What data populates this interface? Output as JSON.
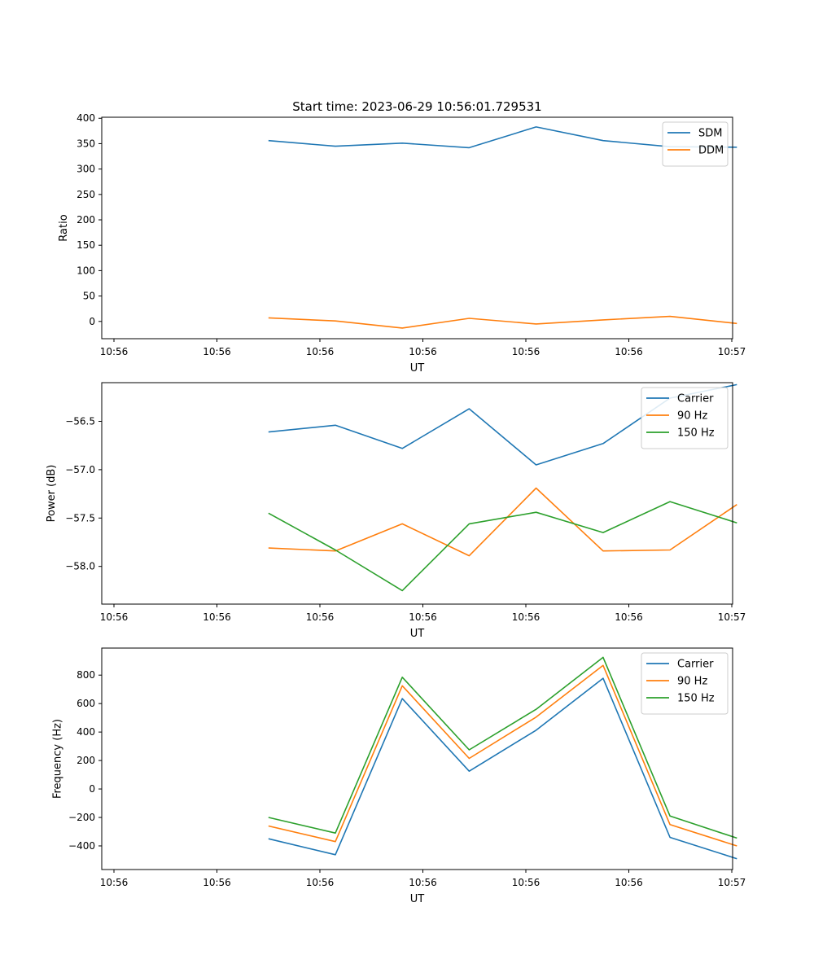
{
  "figure": {
    "title": "Start time: 2023-06-29 10:56:01.729531"
  },
  "chart_data": [
    {
      "type": "line",
      "xlabel": "UT",
      "ylabel": "Ratio",
      "x_tick_labels": [
        "10:56",
        "10:56",
        "10:56",
        "10:56",
        "10:56",
        "10:56",
        "10:57"
      ],
      "x_points": [
        1.5,
        2.15,
        2.8,
        3.45,
        4.1,
        4.75,
        5.4,
        6.05
      ],
      "xlim": [
        0,
        6
      ],
      "ylim": [
        -34,
        402
      ],
      "y_ticks": [
        0,
        50,
        100,
        150,
        200,
        250,
        300,
        350,
        400
      ],
      "y_tick_labels": [
        "0",
        "50",
        "100",
        "150",
        "200",
        "250",
        "300",
        "350",
        "400"
      ],
      "legend_position": "top-right",
      "grid": false,
      "series": [
        {
          "name": "SDM",
          "color": "#1f77b4",
          "values": [
            356,
            345,
            351,
            342,
            383,
            356,
            344,
            343
          ]
        },
        {
          "name": "DDM",
          "color": "#ff7f0e",
          "values": [
            7,
            1,
            -13,
            6,
            -5,
            3,
            10,
            -4
          ]
        }
      ]
    },
    {
      "type": "line",
      "xlabel": "UT",
      "ylabel": "Power (dB)",
      "x_tick_labels": [
        "10:56",
        "10:56",
        "10:56",
        "10:56",
        "10:56",
        "10:56",
        "10:57"
      ],
      "x_points": [
        1.5,
        2.15,
        2.8,
        3.45,
        4.1,
        4.75,
        5.4,
        6.05
      ],
      "xlim": [
        0,
        6
      ],
      "ylim": [
        -58.39,
        -56.1
      ],
      "y_ticks": [
        -58.0,
        -57.5,
        -57.0,
        -56.5
      ],
      "y_tick_labels": [
        "−58.0",
        "−57.5",
        "−57.0",
        "−56.5"
      ],
      "legend_position": "top-right",
      "grid": false,
      "series": [
        {
          "name": "Carrier",
          "color": "#1f77b4",
          "values": [
            -56.61,
            -56.54,
            -56.78,
            -56.37,
            -56.95,
            -56.73,
            -56.26,
            -56.12
          ]
        },
        {
          "name": "90 Hz",
          "color": "#ff7f0e",
          "values": [
            -57.81,
            -57.84,
            -57.56,
            -57.89,
            -57.19,
            -57.84,
            -57.83,
            -57.36
          ]
        },
        {
          "name": "150 Hz",
          "color": "#2ca02c",
          "values": [
            -57.45,
            -57.83,
            -58.25,
            -57.56,
            -57.44,
            -57.65,
            -57.33,
            -57.55
          ]
        }
      ]
    },
    {
      "type": "line",
      "xlabel": "UT",
      "ylabel": "Frequency (Hz)",
      "x_tick_labels": [
        "10:56",
        "10:56",
        "10:56",
        "10:56",
        "10:56",
        "10:56",
        "10:57"
      ],
      "x_points": [
        1.5,
        2.15,
        2.8,
        3.45,
        4.1,
        4.75,
        5.4,
        6.05
      ],
      "xlim": [
        0,
        6
      ],
      "ylim": [
        -566,
        990
      ],
      "y_ticks": [
        -400,
        -200,
        0,
        200,
        400,
        600,
        800
      ],
      "y_tick_labels": [
        "−400",
        "−200",
        "0",
        "200",
        "400",
        "600",
        "800"
      ],
      "legend_position": "top-right",
      "grid": false,
      "series": [
        {
          "name": "Carrier",
          "color": "#1f77b4",
          "values": [
            -350,
            -462,
            635,
            125,
            413,
            778,
            -340,
            -490
          ]
        },
        {
          "name": "90 Hz",
          "color": "#ff7f0e",
          "values": [
            -260,
            -370,
            725,
            215,
            505,
            868,
            -250,
            -400
          ]
        },
        {
          "name": "150 Hz",
          "color": "#2ca02c",
          "values": [
            -200,
            -310,
            785,
            275,
            560,
            925,
            -190,
            -345
          ]
        }
      ]
    }
  ]
}
